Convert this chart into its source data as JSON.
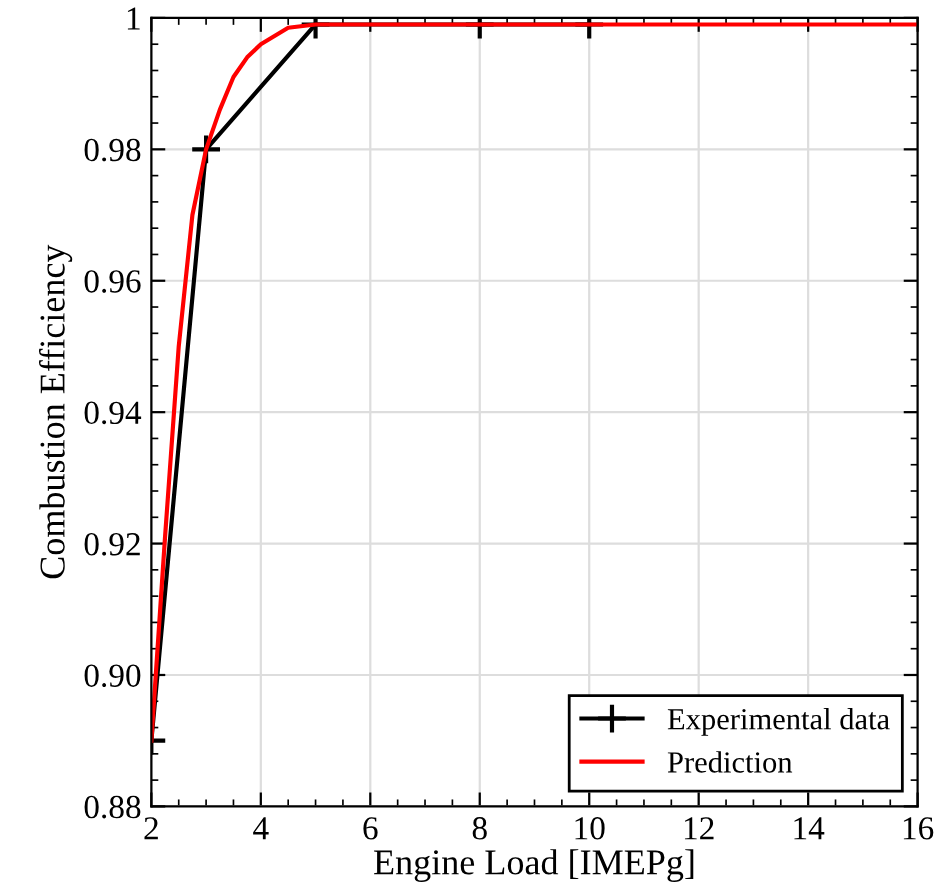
{
  "chart_data": {
    "type": "line",
    "xlabel": "Engine Load [IMEPg]",
    "ylabel": "Combustion Efficiency",
    "series": [
      {
        "name": "Experimental data",
        "color": "#000000",
        "marker": "cross",
        "x": [
          2,
          3,
          5,
          8,
          10
        ],
        "values": [
          0.89,
          0.98,
          0.999,
          0.999,
          0.999
        ]
      },
      {
        "name": "Prediction",
        "color": "#ff0000",
        "marker": "none",
        "x": [
          2,
          2.25,
          2.5,
          2.75,
          3,
          3.25,
          3.5,
          3.75,
          4,
          4.5,
          5,
          6,
          8,
          10,
          12,
          14,
          16
        ],
        "values": [
          0.89,
          0.921,
          0.95,
          0.97,
          0.98,
          0.986,
          0.991,
          0.994,
          0.996,
          0.9985,
          0.999,
          0.999,
          0.999,
          0.999,
          0.999,
          0.999,
          0.999
        ]
      }
    ],
    "xlim": [
      2,
      16
    ],
    "xticks": [
      2,
      4,
      6,
      8,
      10,
      12,
      14,
      16
    ],
    "ylim": [
      0.88,
      1
    ],
    "yticks": [
      {
        "value": 0.88,
        "label": "0.88"
      },
      {
        "value": 0.9,
        "label": "0.90"
      },
      {
        "value": 0.92,
        "label": "0.92"
      },
      {
        "value": 0.94,
        "label": "0.94"
      },
      {
        "value": 0.96,
        "label": "0.96"
      },
      {
        "value": 0.98,
        "label": "0.98"
      },
      1
    ],
    "grid": true,
    "legend": "bottom right"
  }
}
